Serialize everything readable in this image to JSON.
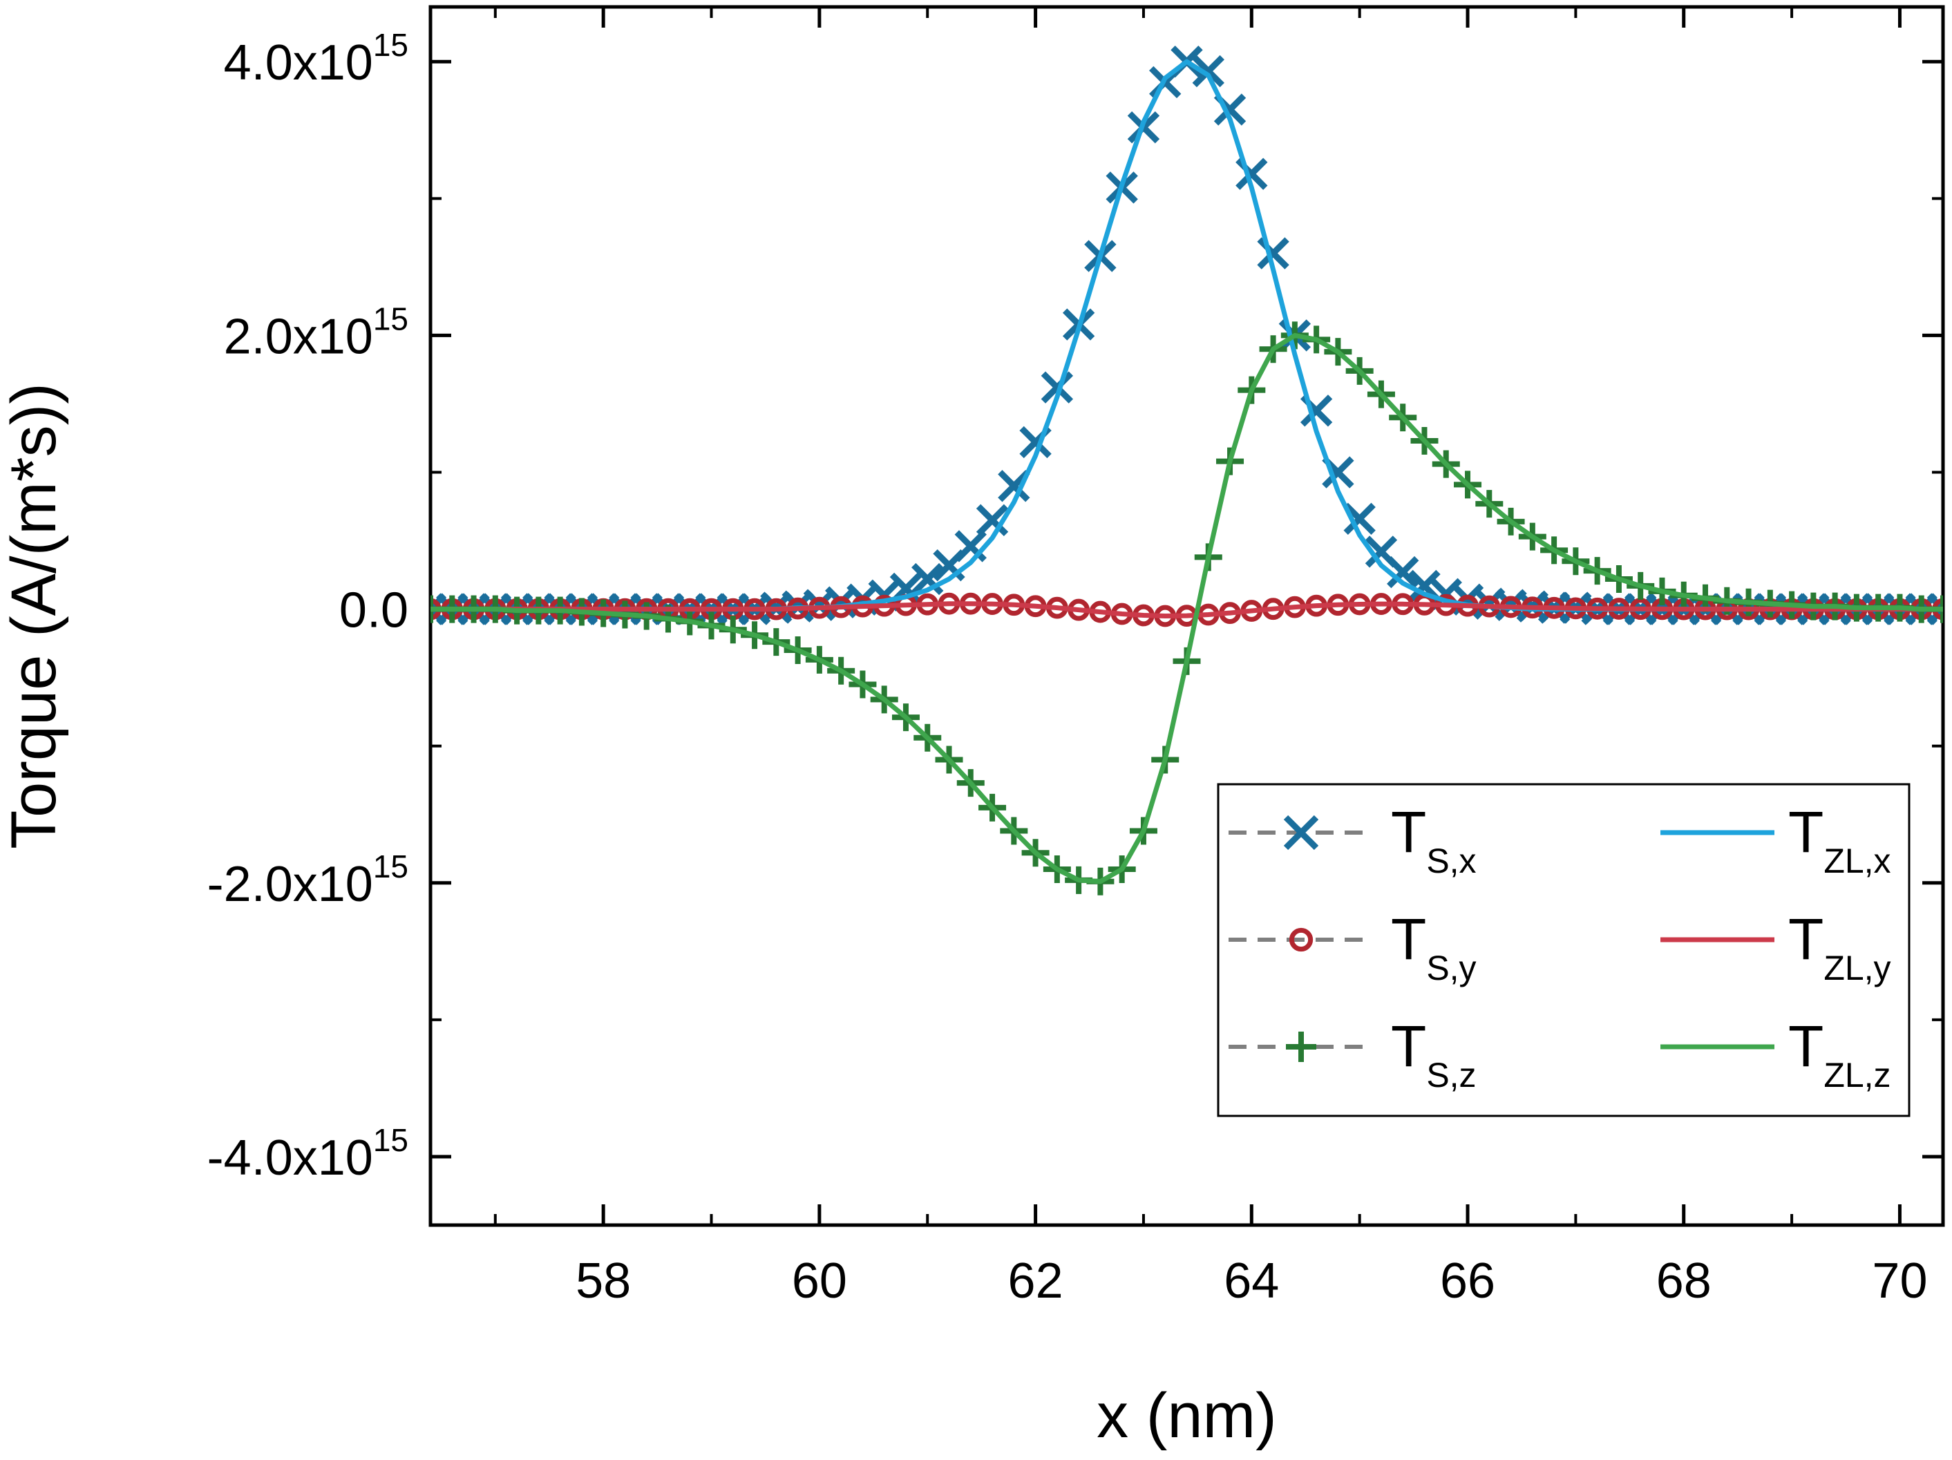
{
  "chart_data": {
    "type": "line",
    "title": "",
    "xlabel": "x (nm)",
    "ylabel": "Torque (A/(m*s))",
    "xlim": [
      56.4,
      70.4
    ],
    "ylim": [
      -4500000000000000.0,
      4400000000000000.0
    ],
    "x_ticks": [
      58,
      60,
      62,
      64,
      66,
      68,
      70
    ],
    "x_tick_labels": [
      "58",
      "60",
      "62",
      "64",
      "66",
      "68",
      "70"
    ],
    "y_ticks": [
      -4000000000000000.0,
      -2000000000000000.0,
      0,
      2000000000000000.0,
      4000000000000000.0
    ],
    "y_tick_labels": [
      {
        "base": "-4.0x10",
        "exp": "15"
      },
      {
        "base": "-2.0x10",
        "exp": "15"
      },
      {
        "base": "0.0",
        "exp": ""
      },
      {
        "base": "2.0x10",
        "exp": "15"
      },
      {
        "base": "4.0x10",
        "exp": "15"
      }
    ],
    "grid": false,
    "legend_position": "bottom-right",
    "colors": {
      "ts_x": "#1a6e9c",
      "ts_y": "#b1262f",
      "ts_z": "#287a33",
      "tzl_x": "#1ea3dc",
      "tzl_y": "#cc3a4a",
      "tzl_z": "#3fa64d",
      "legend_dash": "#7f7f7f"
    },
    "x": [
      56.4,
      56.6,
      56.8,
      57.0,
      57.2,
      57.4,
      57.6,
      57.8,
      58.0,
      58.2,
      58.4,
      58.6,
      58.8,
      59.0,
      59.2,
      59.4,
      59.6,
      59.8,
      60.0,
      60.2,
      60.4,
      60.6,
      60.8,
      61.0,
      61.2,
      61.4,
      61.6,
      61.8,
      62.0,
      62.2,
      62.4,
      62.6,
      62.8,
      63.0,
      63.2,
      63.4,
      63.6,
      63.8,
      64.0,
      64.2,
      64.4,
      64.6,
      64.8,
      65.0,
      65.2,
      65.4,
      65.6,
      65.8,
      66.0,
      66.2,
      66.4,
      66.6,
      66.8,
      67.0,
      67.2,
      67.4,
      67.6,
      67.8,
      68.0,
      68.2,
      68.4,
      68.6,
      68.8,
      69.0,
      69.2,
      69.4,
      69.6,
      69.8,
      70.0,
      70.2,
      70.4
    ],
    "series": [
      {
        "name": "T_S,x",
        "label": {
          "main": "T",
          "sub": "S,x"
        },
        "style": "dashed-marker",
        "marker": "x",
        "color_key": "ts_x",
        "values": [
          0.0,
          0.0,
          0.0,
          0.0,
          0.0,
          0.0,
          0.0,
          0.0,
          0.0,
          0.0,
          0.0,
          0.0,
          0.0,
          0.0,
          0.0,
          0.0,
          10000000000000.0,
          20000000000000.0,
          30000000000000.0,
          50000000000000.0,
          70000000000000.0,
          100000000000000.0,
          150000000000000.0,
          220000000000000.0,
          320000000000000.0,
          460000000000000.0,
          650000000000000.0,
          900000000000000.0,
          1220000000000000.0,
          1620000000000000.0,
          2080000000000000.0,
          2580000000000000.0,
          3080000000000000.0,
          3520000000000000.0,
          3850000000000000.0,
          4000000000000000.0,
          3930000000000000.0,
          3650000000000000.0,
          3180000000000000.0,
          2600000000000000.0,
          2000000000000000.0,
          1450000000000000.0,
          1000000000000000.0,
          660000000000000.0,
          420000000000000.0,
          270000000000000.0,
          170000000000000.0,
          110000000000000.0,
          70000000000000.0,
          40000000000000.0,
          30000000000000.0,
          20000000000000.0,
          10000000000000.0,
          10000000000000.0,
          0.0,
          0.0,
          0.0,
          0.0,
          0.0,
          0.0,
          0.0,
          0.0,
          0.0,
          0.0,
          0.0,
          0.0,
          0.0,
          0.0,
          0.0,
          0.0,
          0.0
        ]
      },
      {
        "name": "T_S,y",
        "label": {
          "main": "T",
          "sub": "S,y"
        },
        "style": "dashed-marker",
        "marker": "circle",
        "color_key": "ts_y",
        "values": [
          0.0,
          0.0,
          0.0,
          0.0,
          0.0,
          0.0,
          0.0,
          0.0,
          0.0,
          0.0,
          0.0,
          0.0,
          0.0,
          0.0,
          0.0,
          0.0,
          0.0,
          5000000000000.0,
          10000000000000.0,
          15000000000000.0,
          20000000000000.0,
          25000000000000.0,
          30000000000000.0,
          35000000000000.0,
          40000000000000.0,
          40000000000000.0,
          38000000000000.0,
          32000000000000.0,
          22000000000000.0,
          10000000000000.0,
          -5000000000000.0,
          -20000000000000.0,
          -35000000000000.0,
          -45000000000000.0,
          -50000000000000.0,
          -48000000000000.0,
          -40000000000000.0,
          -28000000000000.0,
          -12000000000000.0,
          2000000000000.0,
          15000000000000.0,
          25000000000000.0,
          32000000000000.0,
          36000000000000.0,
          38000000000000.0,
          37000000000000.0,
          34000000000000.0,
          30000000000000.0,
          25000000000000.0,
          20000000000000.0,
          16000000000000.0,
          12000000000000.0,
          9000000000000.0,
          6000000000000.0,
          4000000000000.0,
          3000000000000.0,
          2000000000000.0,
          1000000000000.0,
          0.0,
          0.0,
          0.0,
          0.0,
          0.0,
          0.0,
          0.0,
          0.0,
          0.0,
          0.0,
          0.0,
          0.0,
          0.0
        ]
      },
      {
        "name": "T_S,z",
        "label": {
          "main": "T",
          "sub": "S,z"
        },
        "style": "dashed-marker",
        "marker": "plus",
        "color_key": "ts_z",
        "values": [
          0.0,
          0.0,
          0.0,
          0.0,
          -10000000000000.0,
          -10000000000000.0,
          -10000000000000.0,
          -20000000000000.0,
          -30000000000000.0,
          -40000000000000.0,
          -50000000000000.0,
          -70000000000000.0,
          -90000000000000.0,
          -120000000000000.0,
          -150000000000000.0,
          -190000000000000.0,
          -240000000000000.0,
          -300000000000000.0,
          -370000000000000.0,
          -450000000000000.0,
          -550000000000000.0,
          -660000000000000.0,
          -790000000000000.0,
          -940000000000000.0,
          -1100000000000000.0,
          -1270000000000000.0,
          -1450000000000000.0,
          -1620000000000000.0,
          -1780000000000000.0,
          -1900000000000000.0,
          -1980000000000000.0,
          -1990000000000000.0,
          -1900000000000000.0,
          -1620000000000000.0,
          -1100000000000000.0,
          -380000000000000.0,
          380000000000000.0,
          1080000000000000.0,
          1600000000000000.0,
          1900000000000000.0,
          2000000000000000.0,
          1970000000000000.0,
          1880000000000000.0,
          1740000000000000.0,
          1570000000000000.0,
          1400000000000000.0,
          1230000000000000.0,
          1060000000000000.0,
          910000000000000.0,
          770000000000000.0,
          640000000000000.0,
          530000000000000.0,
          430000000000000.0,
          350000000000000.0,
          280000000000000.0,
          220000000000000.0,
          170000000000000.0,
          130000000000000.0,
          100000000000000.0,
          80000000000000.0,
          60000000000000.0,
          50000000000000.0,
          40000000000000.0,
          30000000000000.0,
          20000000000000.0,
          20000000000000.0,
          10000000000000.0,
          10000000000000.0,
          10000000000000.0,
          0.0,
          0.0
        ]
      },
      {
        "name": "T_ZL,x",
        "label": {
          "main": "T",
          "sub": "ZL,x"
        },
        "style": "solid",
        "color_key": "tzl_x",
        "values": [
          0.0,
          0.0,
          0.0,
          0.0,
          0.0,
          0.0,
          0.0,
          0.0,
          0.0,
          0.0,
          0.0,
          0.0,
          0.0,
          0.0,
          0.0,
          0.0,
          0.0,
          10000000000000.0,
          10000000000000.0,
          20000000000000.0,
          40000000000000.0,
          60000000000000.0,
          90000000000000.0,
          140000000000000.0,
          220000000000000.0,
          340000000000000.0,
          520000000000000.0,
          780000000000000.0,
          1120000000000000.0,
          1550000000000000.0,
          2050000000000000.0,
          2580000000000000.0,
          3100000000000000.0,
          3560000000000000.0,
          3880000000000000.0,
          4000000000000000.0,
          3900000000000000.0,
          3580000000000000.0,
          3080000000000000.0,
          2480000000000000.0,
          1860000000000000.0,
          1300000000000000.0,
          860000000000000.0,
          540000000000000.0,
          320000000000000.0,
          190000000000000.0,
          110000000000000.0,
          60000000000000.0,
          30000000000000.0,
          20000000000000.0,
          10000000000000.0,
          0.0,
          0.0,
          0.0,
          0.0,
          0.0,
          0.0,
          0.0,
          0.0,
          0.0,
          0.0,
          0.0,
          0.0,
          0.0,
          0.0,
          0.0,
          0.0,
          0.0,
          0.0,
          0.0,
          0.0
        ]
      },
      {
        "name": "T_ZL,y",
        "label": {
          "main": "T",
          "sub": "ZL,y"
        },
        "style": "solid",
        "color_key": "tzl_y",
        "values": [
          0.0,
          0.0,
          0.0,
          0.0,
          0.0,
          0.0,
          0.0,
          0.0,
          0.0,
          0.0,
          0.0,
          0.0,
          0.0,
          0.0,
          0.0,
          0.0,
          0.0,
          5000000000000.0,
          10000000000000.0,
          15000000000000.0,
          20000000000000.0,
          25000000000000.0,
          30000000000000.0,
          35000000000000.0,
          40000000000000.0,
          40000000000000.0,
          38000000000000.0,
          32000000000000.0,
          22000000000000.0,
          10000000000000.0,
          -5000000000000.0,
          -20000000000000.0,
          -35000000000000.0,
          -45000000000000.0,
          -50000000000000.0,
          -48000000000000.0,
          -40000000000000.0,
          -28000000000000.0,
          -12000000000000.0,
          2000000000000.0,
          15000000000000.0,
          25000000000000.0,
          32000000000000.0,
          36000000000000.0,
          38000000000000.0,
          37000000000000.0,
          34000000000000.0,
          30000000000000.0,
          25000000000000.0,
          20000000000000.0,
          16000000000000.0,
          12000000000000.0,
          9000000000000.0,
          6000000000000.0,
          4000000000000.0,
          3000000000000.0,
          2000000000000.0,
          1000000000000.0,
          0.0,
          0.0,
          0.0,
          0.0,
          0.0,
          0.0,
          0.0,
          0.0,
          0.0,
          0.0,
          0.0,
          0.0,
          0.0
        ]
      },
      {
        "name": "T_ZL,z",
        "label": {
          "main": "T",
          "sub": "ZL,z"
        },
        "style": "solid",
        "color_key": "tzl_z",
        "values": [
          0.0,
          0.0,
          0.0,
          0.0,
          -10000000000000.0,
          -10000000000000.0,
          -10000000000000.0,
          -20000000000000.0,
          -30000000000000.0,
          -40000000000000.0,
          -50000000000000.0,
          -70000000000000.0,
          -90000000000000.0,
          -120000000000000.0,
          -150000000000000.0,
          -190000000000000.0,
          -240000000000000.0,
          -300000000000000.0,
          -370000000000000.0,
          -450000000000000.0,
          -550000000000000.0,
          -660000000000000.0,
          -790000000000000.0,
          -940000000000000.0,
          -1100000000000000.0,
          -1270000000000000.0,
          -1450000000000000.0,
          -1620000000000000.0,
          -1780000000000000.0,
          -1900000000000000.0,
          -1980000000000000.0,
          -1990000000000000.0,
          -1900000000000000.0,
          -1620000000000000.0,
          -1100000000000000.0,
          -380000000000000.0,
          380000000000000.0,
          1080000000000000.0,
          1600000000000000.0,
          1900000000000000.0,
          2000000000000000.0,
          1970000000000000.0,
          1880000000000000.0,
          1740000000000000.0,
          1570000000000000.0,
          1400000000000000.0,
          1230000000000000.0,
          1060000000000000.0,
          910000000000000.0,
          770000000000000.0,
          640000000000000.0,
          530000000000000.0,
          430000000000000.0,
          350000000000000.0,
          280000000000000.0,
          220000000000000.0,
          170000000000000.0,
          130000000000000.0,
          100000000000000.0,
          80000000000000.0,
          60000000000000.0,
          50000000000000.0,
          40000000000000.0,
          30000000000000.0,
          20000000000000.0,
          20000000000000.0,
          10000000000000.0,
          10000000000000.0,
          10000000000000.0,
          0.0,
          0.0
        ]
      }
    ],
    "legend_columns": [
      [
        "T_S,x",
        "T_S,y",
        "T_S,z"
      ],
      [
        "T_ZL,x",
        "T_ZL,y",
        "T_ZL,z"
      ]
    ]
  }
}
